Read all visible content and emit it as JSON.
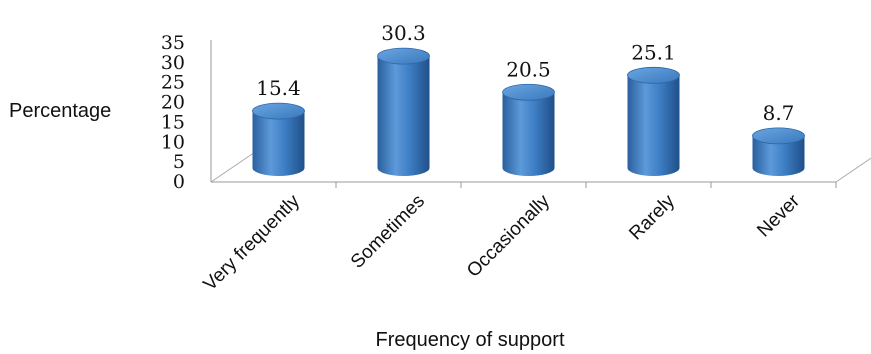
{
  "chart_data": {
    "type": "bar",
    "categories": [
      "Very frequently",
      "Sometimes",
      "Occasionally",
      "Rarely",
      "Never"
    ],
    "values": [
      15.4,
      30.3,
      20.5,
      25.1,
      8.7
    ],
    "value_labels": [
      "15.4",
      "30.3",
      "20.5",
      "25.1",
      "8.7"
    ],
    "ylabel": "Percentage",
    "xlabel": "Frequency of support",
    "ylim": [
      0,
      35
    ],
    "yticks": [
      "0",
      "5",
      "10",
      "15",
      "20",
      "25",
      "30",
      "35"
    ],
    "grid": false,
    "bar_style": "3d-cylinder",
    "bar_color": "#3e7fc4"
  }
}
